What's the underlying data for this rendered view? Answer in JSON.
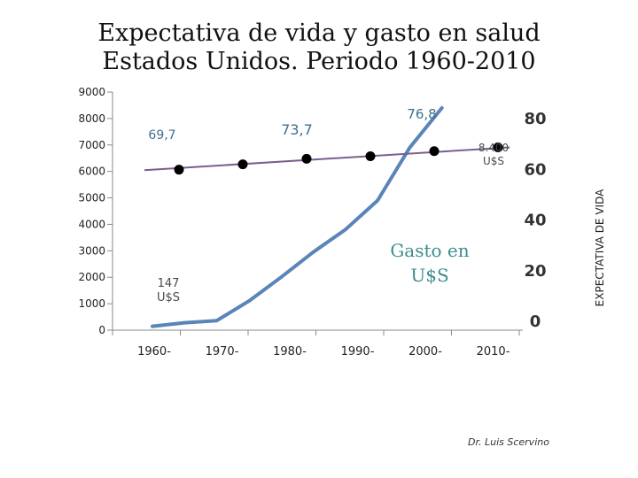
{
  "title": {
    "line1": "Expectativa de vida y gasto en salud",
    "line2": "Estados Unidos. Periodo  1960-2010"
  },
  "author": "Dr. Luis Scervino",
  "chart_data": {
    "type": "line",
    "categories": [
      "1960-",
      "1970-",
      "1980-",
      "1990-",
      "2000-",
      "2010-"
    ],
    "left_axis": {
      "min": 0,
      "max": 9000,
      "ticks": [
        0,
        1000,
        2000,
        3000,
        4000,
        5000,
        6000,
        7000,
        8000,
        9000
      ]
    },
    "right_axis": {
      "label": "EXPECTATIVA DE VIDA",
      "min": 0,
      "max": 80,
      "ticks": [
        0,
        20,
        40,
        60,
        80
      ],
      "tick_labels": [
        "0",
        "20",
        "40",
        "60",
        "80"
      ]
    },
    "series": [
      {
        "name": "Gasto en U$S",
        "axis": "left",
        "color": "#5b84b8",
        "x": [
          0,
          0.5,
          1.0,
          1.5,
          2.0,
          2.5,
          3.0,
          3.5,
          4.0,
          4.5
        ],
        "values": [
          147,
          280,
          360,
          1100,
          2000,
          2950,
          3800,
          4900,
          6900,
          8400
        ]
      },
      {
        "name": "Expectativa de vida",
        "axis": "right",
        "color": "#7a5f8e",
        "trend": [
          59.3,
          68.3
        ],
        "points": [
          {
            "x": 0.0,
            "value": 59.5
          },
          {
            "x": 1.0,
            "value": 61.6
          },
          {
            "x": 2.0,
            "value": 63.8
          },
          {
            "x": 3.0,
            "value": 64.8
          },
          {
            "x": 4.0,
            "value": 66.8
          },
          {
            "x": 5.0,
            "value": 68.3
          }
        ]
      }
    ],
    "annotations": [
      {
        "text": "69,7",
        "color": "#3d6f8e"
      },
      {
        "text": "73,7",
        "color": "#3d6f8e"
      },
      {
        "text": "76,8",
        "color": "#3d6f8e"
      },
      {
        "text": "8.400",
        "text2": "U$S",
        "color": "#4a4a4a"
      },
      {
        "text": "147",
        "text2": "U$S",
        "color": "#4a4a4a"
      },
      {
        "text": "Gasto en",
        "text2": "U$S",
        "color": "#3c8d8d"
      }
    ]
  }
}
